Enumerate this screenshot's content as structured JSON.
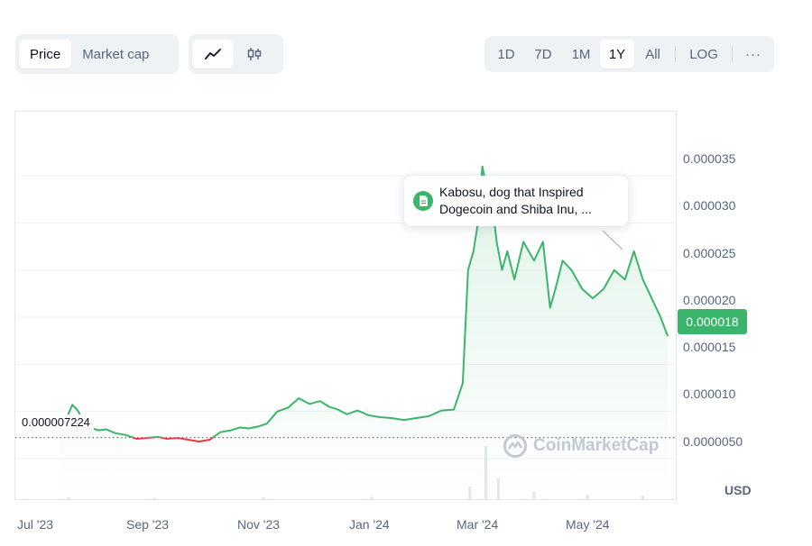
{
  "toolbar": {
    "metric_tabs": [
      "Price",
      "Market cap"
    ],
    "active_metric": "Price",
    "chart_style_icons": [
      "line-chart-icon",
      "candlestick-icon"
    ],
    "ranges": [
      "1D",
      "7D",
      "1M",
      "1Y",
      "All"
    ],
    "active_range": "1Y",
    "log_label": "LOG",
    "more_label": "···"
  },
  "tooltip": {
    "text_line1": "Kabosu, dog that Inspired",
    "text_line2": "Dogecoin and Shiba Inu, ...",
    "icon": "document-icon"
  },
  "watermark": "CoinMarketCap",
  "current_price_label": "0.000018",
  "open_price_label": "0.000007224",
  "currency": "USD",
  "colors": {
    "up": "#3bb56b",
    "down": "#ea3943",
    "grid": "#eff2f5",
    "badge": "#3bb56b"
  },
  "chart_data": {
    "type": "line",
    "title": "",
    "xlabel": "",
    "ylabel": "",
    "x_tick_labels": [
      "Jul '23",
      "Sep '23",
      "Nov '23",
      "Jan '24",
      "Mar '24",
      "May '24"
    ],
    "x_ticks": [
      "2023-07-01",
      "2023-09-01",
      "2023-11-01",
      "2024-01-01",
      "2024-03-01",
      "2024-05-01"
    ],
    "xlim": [
      "2023-06-15",
      "2024-06-20"
    ],
    "y_tick_labels": [
      "0.0000050",
      "0.000010",
      "0.000015",
      "0.000020",
      "0.000025",
      "0.000030",
      "0.000035"
    ],
    "y_ticks": [
      5e-06,
      1e-05,
      1.5e-05,
      2e-05,
      2.5e-05,
      3e-05,
      3.5e-05
    ],
    "ylim": [
      6e-07,
      4.18e-05
    ],
    "reference_line": 7.224e-06,
    "current_value": 1.8e-05,
    "grid": true,
    "series": [
      {
        "color_rule": "green above reference, red below reference",
        "x": [
          "2023-07-10",
          "2023-07-14",
          "2023-07-17",
          "2023-07-20",
          "2023-07-24",
          "2023-07-28",
          "2023-08-01",
          "2023-08-05",
          "2023-08-10",
          "2023-08-16",
          "2023-08-22",
          "2023-08-28",
          "2023-09-03",
          "2023-09-08",
          "2023-09-14",
          "2023-09-20",
          "2023-09-26",
          "2023-10-02",
          "2023-10-08",
          "2023-10-14",
          "2023-10-19",
          "2023-10-24",
          "2023-10-29",
          "2023-11-03",
          "2023-11-09",
          "2023-11-15",
          "2023-11-21",
          "2023-11-27",
          "2023-12-03",
          "2023-12-08",
          "2023-12-13",
          "2023-12-18",
          "2023-12-24",
          "2023-12-30",
          "2024-01-05",
          "2024-01-12",
          "2024-01-19",
          "2024-01-26",
          "2024-02-02",
          "2024-02-09",
          "2024-02-16",
          "2024-02-21",
          "2024-02-24",
          "2024-02-27",
          "2024-03-01",
          "2024-03-03",
          "2024-03-05",
          "2024-03-08",
          "2024-03-11",
          "2024-03-14",
          "2024-03-17",
          "2024-03-21",
          "2024-03-26",
          "2024-04-01",
          "2024-04-06",
          "2024-04-10",
          "2024-04-13",
          "2024-04-17",
          "2024-04-22",
          "2024-04-28",
          "2024-05-04",
          "2024-05-10",
          "2024-05-16",
          "2024-05-22",
          "2024-05-27",
          "2024-06-01",
          "2024-06-06",
          "2024-06-11",
          "2024-06-15"
        ],
        "y": [
          8.6e-06,
          9.4e-06,
          1.07e-05,
          1.01e-05,
          8.6e-06,
          8.2e-06,
          8e-06,
          8.1e-06,
          7.7e-06,
          7.5e-06,
          7.1e-06,
          7.2e-06,
          7.3e-06,
          7.1e-06,
          7.2e-06,
          7e-06,
          6.8e-06,
          7e-06,
          7.8e-06,
          8e-06,
          8.3e-06,
          8.2e-06,
          8.4e-06,
          8.7e-06,
          1e-05,
          1.04e-05,
          1.14e-05,
          1.08e-05,
          1.11e-05,
          1.05e-05,
          1.02e-05,
          9.7e-06,
          1.01e-05,
          9.6e-06,
          9.4e-06,
          9.3e-06,
          9.1e-06,
          9.3e-06,
          9.5e-06,
          1.01e-05,
          1.02e-05,
          1.3e-05,
          2.5e-05,
          2.7e-05,
          3.06e-05,
          3.6e-05,
          3.4e-05,
          3.3e-05,
          2.8e-05,
          2.5e-05,
          2.7e-05,
          2.4e-05,
          2.8e-05,
          2.6e-05,
          2.8e-05,
          2.1e-05,
          2.3e-05,
          2.6e-05,
          2.5e-05,
          2.3e-05,
          2.2e-05,
          2.3e-05,
          2.5e-05,
          2.4e-05,
          2.7e-05,
          2.4e-05,
          2.2e-05,
          2e-05,
          1.8e-05
        ]
      }
    ],
    "volume": {
      "note": "faint volume bars along the bottom, spike around early March 2024",
      "x": [
        "2023-07-15",
        "2023-09-01",
        "2023-11-01",
        "2024-01-01",
        "2024-02-25",
        "2024-03-05",
        "2024-03-12",
        "2024-04-01",
        "2024-05-01",
        "2024-06-01"
      ],
      "relative": [
        0.05,
        0.04,
        0.05,
        0.06,
        0.25,
        1.0,
        0.4,
        0.15,
        0.1,
        0.08
      ]
    }
  }
}
